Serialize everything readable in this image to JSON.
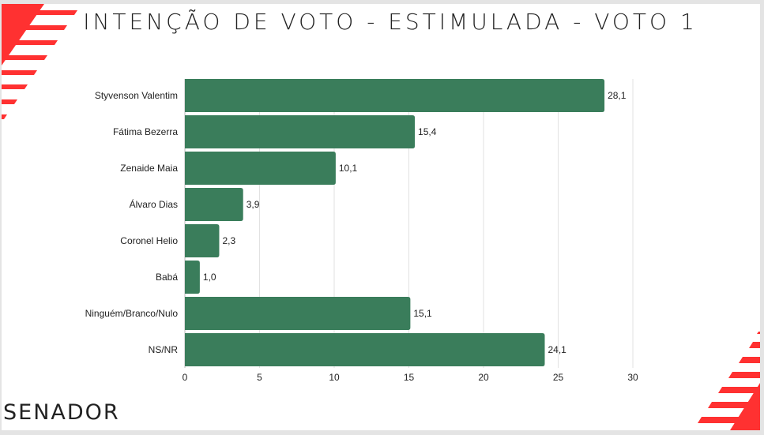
{
  "slide": {
    "title": "INTENÇÃO DE VOTO - ESTIMULADA - VOTO 1",
    "footer": "SENADOR"
  },
  "colors": {
    "bar": "#3a7d5b",
    "accent": "#ff3131",
    "grid": "#e2e2e2"
  },
  "chart_data": {
    "type": "bar",
    "orientation": "horizontal",
    "title": "INTENÇÃO DE VOTO - ESTIMULADA - VOTO 1",
    "categories": [
      "Styvenson Valentim",
      "Fátima Bezerra",
      "Zenaide Maia",
      "Álvaro Dias",
      "Coronel Helio",
      "Babá",
      "Ninguém/Branco/Nulo",
      "NS/NR"
    ],
    "values": [
      28.1,
      15.4,
      10.1,
      3.9,
      2.3,
      1.0,
      15.1,
      24.1
    ],
    "data_labels": [
      "28,1",
      "15,4",
      "10,1",
      "3,9",
      "2,3",
      "1,0",
      "15,1",
      "24,1"
    ],
    "xlim": [
      0,
      30
    ],
    "xticks": [
      0,
      5,
      10,
      15,
      20,
      25,
      30
    ],
    "grid": true,
    "xlabel": "",
    "ylabel": ""
  }
}
